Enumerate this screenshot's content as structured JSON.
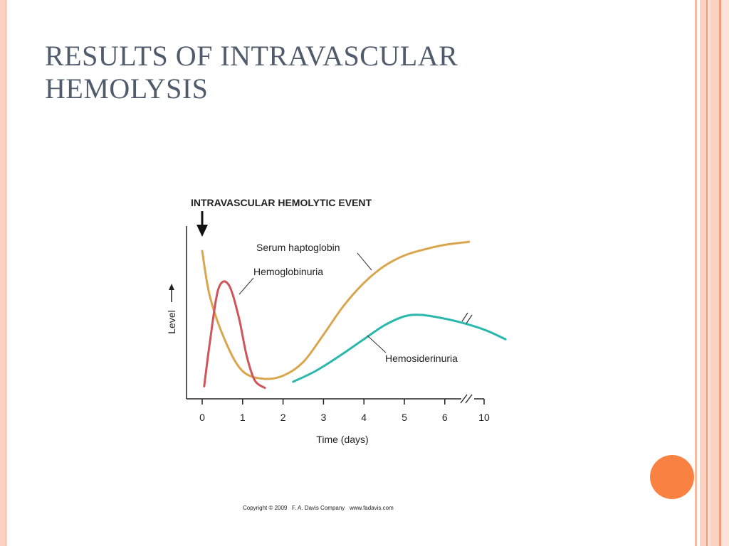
{
  "slide": {
    "title_lines": [
      "RESULTS OF INTRAVASCULAR",
      "HEMOLYSIS"
    ],
    "copyright": "Copyright © 2009   F. A. Davis Company   www.fadavis.com",
    "colors": {
      "title": "#505c6c",
      "accent_dot": "#f98243",
      "border": "#fbd1c2"
    }
  },
  "chart_data": {
    "type": "line",
    "title": "",
    "annotation": "INTRAVASCULAR HEMOLYTIC EVENT",
    "xlabel": "Time (days)",
    "ylabel": "Level",
    "x_ticks": [
      "0",
      "1",
      "2",
      "3",
      "4",
      "5",
      "6",
      "10"
    ],
    "ylim": [
      0,
      1
    ],
    "grid": false,
    "series": [
      {
        "name": "Serum haptoglobin",
        "color": "#d9a64e",
        "points": [
          [
            0,
            0.93
          ],
          [
            0.2,
            0.62
          ],
          [
            0.6,
            0.32
          ],
          [
            1.0,
            0.14
          ],
          [
            1.5,
            0.09
          ],
          [
            2.0,
            0.11
          ],
          [
            2.5,
            0.2
          ],
          [
            3.0,
            0.38
          ],
          [
            3.5,
            0.57
          ],
          [
            4.0,
            0.72
          ],
          [
            4.5,
            0.83
          ],
          [
            5.0,
            0.9
          ],
          [
            5.5,
            0.94
          ],
          [
            6.0,
            0.97
          ],
          [
            6.6,
            0.99
          ]
        ]
      },
      {
        "name": "Hemoglobinuria",
        "color": "#d0555a",
        "points": [
          [
            0.05,
            0.04
          ],
          [
            0.2,
            0.35
          ],
          [
            0.4,
            0.68
          ],
          [
            0.65,
            0.71
          ],
          [
            0.9,
            0.5
          ],
          [
            1.1,
            0.24
          ],
          [
            1.3,
            0.08
          ],
          [
            1.55,
            0.03
          ]
        ]
      },
      {
        "name": "Hemosiderinuria",
        "color": "#2ab8ac",
        "points": [
          [
            2.25,
            0.07
          ],
          [
            2.8,
            0.14
          ],
          [
            3.4,
            0.24
          ],
          [
            4.0,
            0.35
          ],
          [
            4.5,
            0.44
          ],
          [
            5.0,
            0.5
          ],
          [
            5.4,
            0.51
          ],
          [
            5.9,
            0.49
          ],
          [
            6.4,
            0.46
          ],
          [
            7.0,
            0.41
          ],
          [
            7.5,
            0.35
          ]
        ]
      }
    ]
  }
}
